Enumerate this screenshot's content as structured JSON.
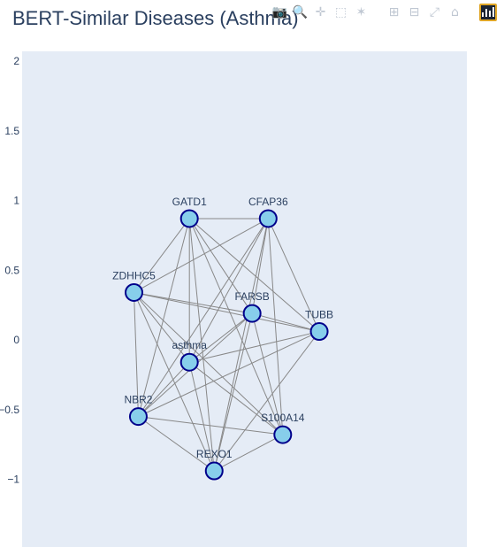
{
  "title": "BERT-Similar Diseases (Asthma)",
  "modebar": {
    "icons": [
      "camera-icon",
      "zoom-icon",
      "pan-icon",
      "box-select-icon",
      "lasso-icon",
      "zoom-in-icon",
      "zoom-out-icon",
      "autoscale-icon",
      "reset-axes-icon",
      "plotly-logo-icon"
    ]
  },
  "colors": {
    "plot_bg": "#e5ecf6",
    "node_fill": "#87ceeb",
    "node_stroke": "#00008b",
    "edge": "#888888",
    "text": "#2a3f5f"
  },
  "chart_data": {
    "type": "network",
    "title": "BERT-Similar Diseases (Asthma)",
    "ylim": [
      -1.25,
      2.05
    ],
    "xlim": [
      -1.35,
      1.6
    ],
    "y_ticks": [
      "2",
      "1.5",
      "1",
      "0.5",
      "0",
      "−0.5",
      "−1"
    ],
    "y_tick_values": [
      2,
      1.5,
      1,
      0.5,
      0,
      -0.5,
      -1
    ],
    "nodes": [
      {
        "name": "GATD1",
        "x": -0.12,
        "y": 0.87
      },
      {
        "name": "CFAP36",
        "x": 0.42,
        "y": 0.87
      },
      {
        "name": "ZDHHC5",
        "x": -0.5,
        "y": 0.34
      },
      {
        "name": "FARSB",
        "x": 0.31,
        "y": 0.19
      },
      {
        "name": "TUBB",
        "x": 0.77,
        "y": 0.06
      },
      {
        "name": "asthma",
        "x": -0.12,
        "y": -0.16
      },
      {
        "name": "NBR2",
        "x": -0.47,
        "y": -0.55
      },
      {
        "name": "S100A14",
        "x": 0.52,
        "y": -0.68
      },
      {
        "name": "REXO1",
        "x": 0.05,
        "y": -0.94
      }
    ],
    "edges": [
      [
        0,
        1
      ],
      [
        0,
        2
      ],
      [
        0,
        3
      ],
      [
        0,
        4
      ],
      [
        0,
        5
      ],
      [
        0,
        6
      ],
      [
        0,
        7
      ],
      [
        0,
        8
      ],
      [
        1,
        2
      ],
      [
        1,
        3
      ],
      [
        1,
        4
      ],
      [
        1,
        5
      ],
      [
        1,
        6
      ],
      [
        1,
        7
      ],
      [
        1,
        8
      ],
      [
        2,
        3
      ],
      [
        2,
        4
      ],
      [
        2,
        5
      ],
      [
        2,
        6
      ],
      [
        2,
        7
      ],
      [
        2,
        8
      ],
      [
        3,
        4
      ],
      [
        3,
        5
      ],
      [
        3,
        6
      ],
      [
        3,
        7
      ],
      [
        3,
        8
      ],
      [
        4,
        5
      ],
      [
        4,
        6
      ],
      [
        4,
        8
      ],
      [
        5,
        6
      ],
      [
        5,
        7
      ],
      [
        5,
        8
      ],
      [
        6,
        7
      ],
      [
        6,
        8
      ],
      [
        7,
        8
      ]
    ]
  }
}
